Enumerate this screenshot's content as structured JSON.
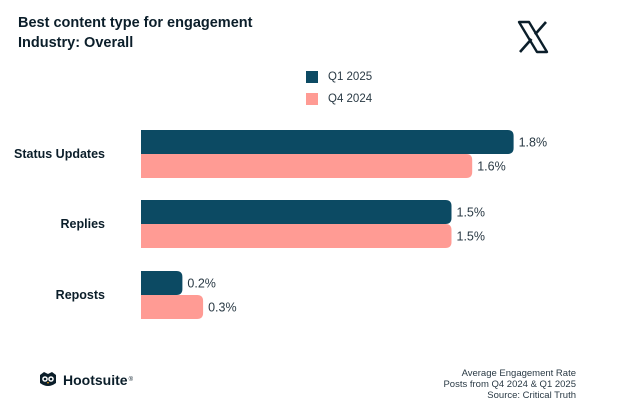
{
  "header": {
    "title": "Best content type for engagement",
    "subtitle": "Industry: Overall"
  },
  "logo": {
    "icon": "x-logo-icon"
  },
  "brand": {
    "name": "Hootsuite",
    "mark": "®",
    "icon": "owl-icon"
  },
  "footnote": {
    "line1": "Average Engagement Rate",
    "line2": "Posts from Q4 2024 & Q1 2025",
    "line3": "Source: Critical Truth"
  },
  "colors": {
    "q1_2025": "#0c4a63",
    "q4_2024": "#ff9b94"
  },
  "chart_data": {
    "type": "bar",
    "orientation": "horizontal",
    "title": "Best content type for engagement",
    "subtitle": "Industry: Overall",
    "categories": [
      "Status Updates",
      "Replies",
      "Reposts"
    ],
    "series": [
      {
        "name": "Q1 2025",
        "values": [
          1.8,
          1.5,
          0.2
        ],
        "labels": [
          "1.8%",
          "1.5%",
          "0.2%"
        ]
      },
      {
        "name": "Q4 2024",
        "values": [
          1.6,
          1.5,
          0.3
        ],
        "labels": [
          "1.6%",
          "1.5%",
          "0.3%"
        ]
      }
    ],
    "xlim": [
      0,
      2.0
    ],
    "xlabel": "Average Engagement Rate",
    "legend_position": "top",
    "grid": false
  }
}
